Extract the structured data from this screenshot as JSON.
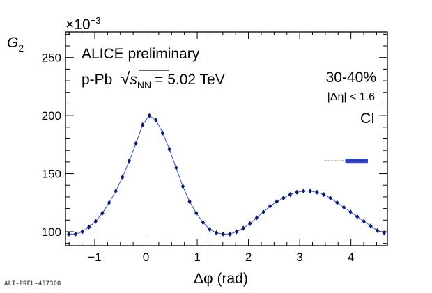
{
  "chart_data": {
    "type": "scatter",
    "ylabel_main": "G",
    "ylabel_sub": "2",
    "y_exponent_base": "×10",
    "y_exponent_power": "−3",
    "xlabel": "Δφ (rad)",
    "xlim": [
      -1.571,
      4.712
    ],
    "ylim": [
      88,
      272
    ],
    "x_tick_values": [
      -1,
      0,
      1,
      2,
      3,
      4
    ],
    "x_tick_labels": [
      "−1",
      "0",
      "1",
      "2",
      "3",
      "4"
    ],
    "y_tick_values": [
      100,
      150,
      200,
      250
    ],
    "y_tick_labels": [
      "100",
      "150",
      "200",
      "250"
    ],
    "grid": false,
    "annotations": {
      "experiment": "ALICE preliminary",
      "system_prefix": "p-Pb",
      "sqrt_symbol": "√",
      "energy_var": "s",
      "energy_sub": "NN",
      "energy_value": "= 5.02 TeV",
      "centrality": "30-40%",
      "eta_cut": "|Δη| < 1.6",
      "charge": "CI"
    },
    "marker_color": "#0b1c6e",
    "line_color": "#3a4fd0",
    "band_color": "#2f42d6",
    "series": [
      {
        "x": [
          -1.505,
          -1.374,
          -1.243,
          -1.113,
          -0.982,
          -0.851,
          -0.72,
          -0.589,
          -0.458,
          -0.327,
          -0.196,
          -0.065,
          0.065,
          0.196,
          0.327,
          0.458,
          0.589,
          0.72,
          0.851,
          0.982,
          1.113,
          1.243,
          1.374,
          1.505,
          1.636,
          1.767,
          1.898,
          2.029,
          2.16,
          2.291,
          2.422,
          2.553,
          2.684,
          2.814,
          2.945,
          3.076,
          3.207,
          3.338,
          3.469,
          3.6,
          3.731,
          3.862,
          3.992,
          4.123,
          4.254,
          4.385,
          4.516,
          4.647
        ],
        "y": [
          98,
          98,
          100,
          104,
          109,
          116,
          125,
          135,
          147,
          161,
          176,
          192,
          200,
          196,
          185,
          171,
          155,
          139,
          126,
          116,
          108,
          102,
          99,
          98,
          98,
          100,
          103,
          107,
          112,
          117,
          122,
          126,
          129,
          132,
          134,
          135,
          135,
          134,
          132,
          129,
          125,
          121,
          117,
          113,
          109,
          105,
          101,
          99
        ]
      }
    ],
    "reference_band": {
      "x": [
        3.89,
        4.33
      ],
      "y": 161
    }
  },
  "footer": {
    "id": "ALI-PREL-457308"
  }
}
